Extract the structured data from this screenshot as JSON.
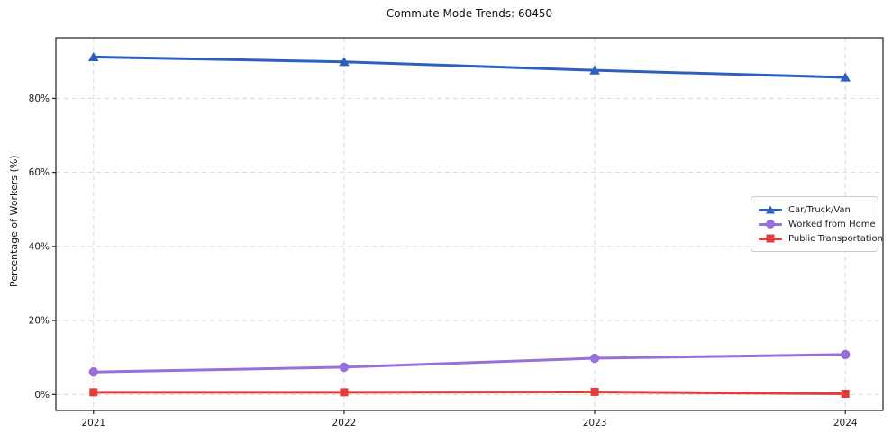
{
  "title": "Commute Mode Trends: 60450",
  "chart_data": {
    "type": "line",
    "title": "Commute Mode Trends: 60450",
    "xlabel": "",
    "ylabel": "Percentage of Workers (%)",
    "x": [
      2021,
      2022,
      2023,
      2024
    ],
    "x_tick_labels": [
      "2021",
      "2022",
      "2023",
      "2024"
    ],
    "y_ticks": [
      0,
      20,
      40,
      60,
      80
    ],
    "y_tick_labels": [
      "0%",
      "20%",
      "40%",
      "60%",
      "80%"
    ],
    "ylim": [
      -4.3,
      96.4
    ],
    "grid": "dashed-both-axes",
    "legend_position": "center-right",
    "series": [
      {
        "name": "Car/Truck/Van",
        "marker": "triangle",
        "color": "#2d5fbe",
        "values": [
          91.2,
          89.9,
          87.6,
          85.7
        ]
      },
      {
        "name": "Worked from Home",
        "marker": "circle",
        "color": "#9770d9",
        "values": [
          6.1,
          7.4,
          9.8,
          10.8
        ]
      },
      {
        "name": "Public Transportation",
        "marker": "square",
        "color": "#e23d3d",
        "values": [
          0.6,
          0.6,
          0.7,
          0.2
        ]
      }
    ],
    "colors": {
      "grid": "#d9d9d9",
      "spine": "#1f1f1f",
      "tick_text": "#1a1a1a",
      "background": "#ffffff"
    }
  }
}
